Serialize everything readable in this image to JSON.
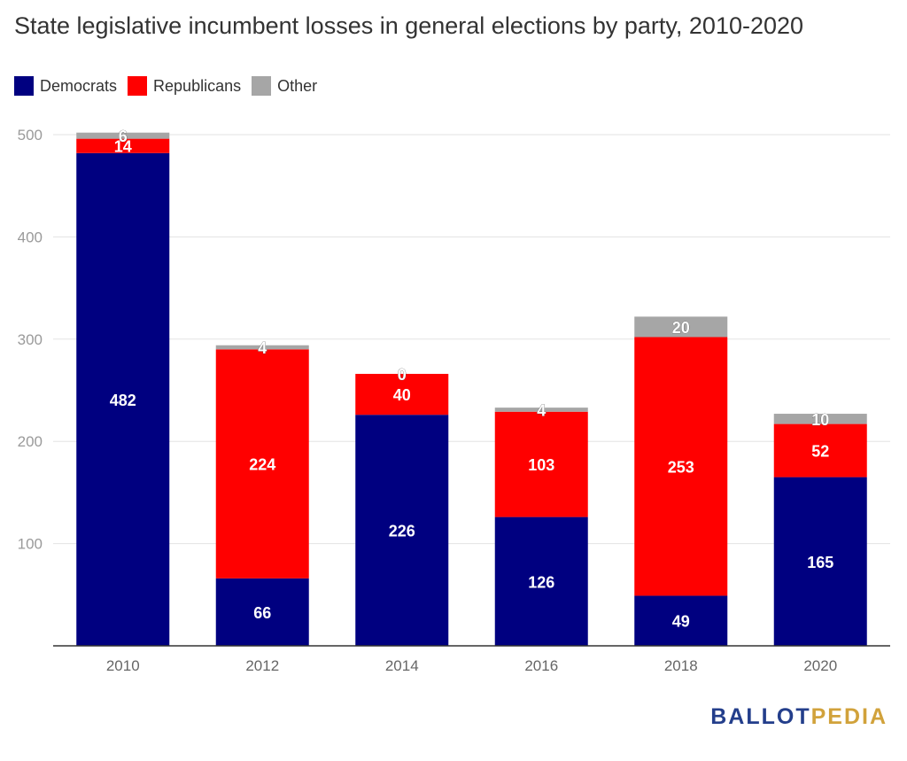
{
  "chart_data": {
    "type": "bar",
    "stacked": true,
    "title": "State legislative incumbent losses in general elections by party, 2010-2020",
    "categories": [
      "2010",
      "2012",
      "2014",
      "2016",
      "2018",
      "2020"
    ],
    "series": [
      {
        "name": "Democrats",
        "color": "#000080",
        "values": [
          482,
          66,
          226,
          126,
          49,
          165
        ]
      },
      {
        "name": "Republicans",
        "color": "#ff0000",
        "values": [
          14,
          224,
          40,
          103,
          253,
          52
        ]
      },
      {
        "name": "Other",
        "color": "#a6a6a6",
        "values": [
          6,
          4,
          0,
          4,
          20,
          10
        ]
      }
    ],
    "yticks": [
      100,
      200,
      300,
      400,
      500
    ],
    "ylim": [
      0,
      500
    ],
    "grid": true,
    "legend_position": "top-left",
    "xlabel": "",
    "ylabel": ""
  },
  "brand": {
    "part1": "BALLOT",
    "part2": "PEDIA"
  }
}
